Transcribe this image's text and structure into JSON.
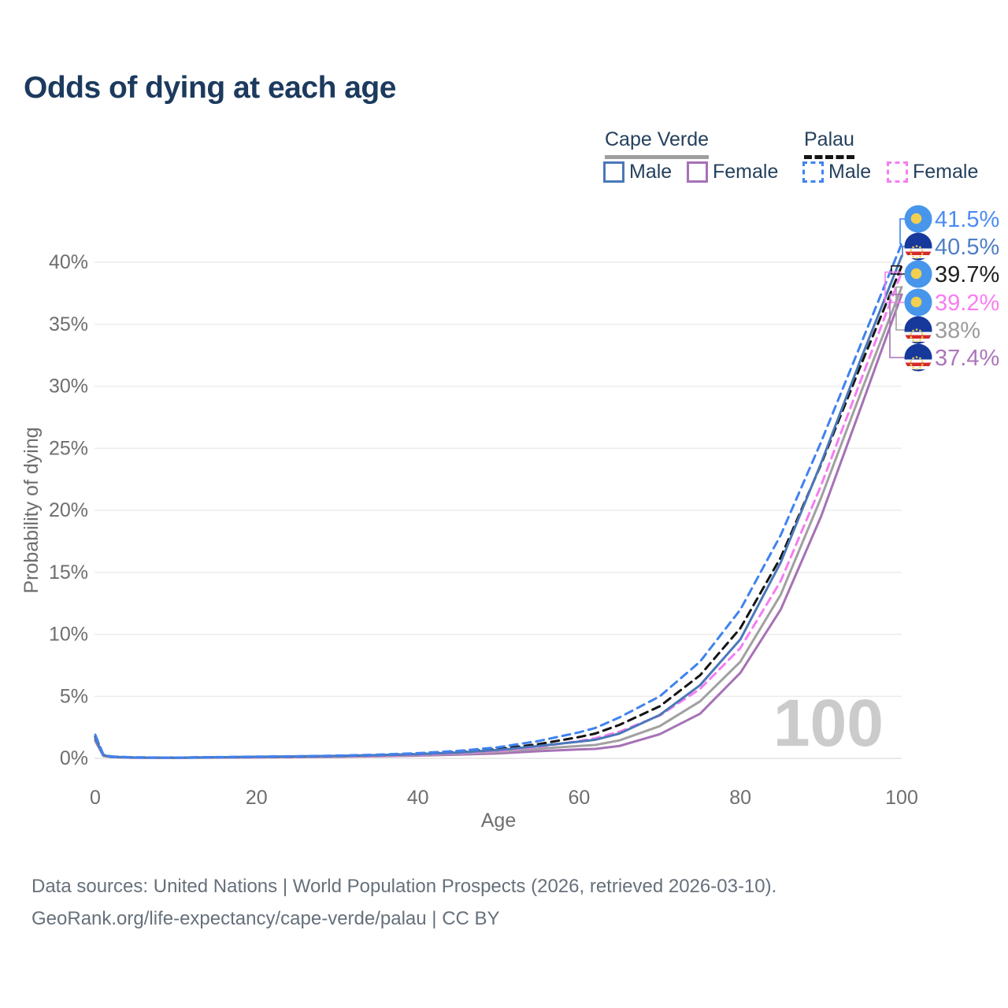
{
  "title": "Odds of dying at each age",
  "colors": {
    "title_text": "#1c3a5e",
    "legend_text": "#24405c",
    "axis_text": "#6e6e6e",
    "grid": "#ececec",
    "grid_zero": "#e2e2e2",
    "watermark": "#cbcbcb",
    "footer_text": "#66707b"
  },
  "legend": {
    "groups": [
      {
        "title": "Cape Verde",
        "underline_style": "solid",
        "underline_color": "#9e9e9e",
        "items": [
          {
            "label": "Male",
            "swatch_color": "#4a78b8",
            "swatch_style": "solid"
          },
          {
            "label": "Female",
            "swatch_color": "#a671b5",
            "swatch_style": "solid"
          }
        ]
      },
      {
        "title": "Palau",
        "underline_style": "dashed",
        "underline_color": "#141414",
        "items": [
          {
            "label": "Male",
            "swatch_color": "#3f82f0",
            "swatch_style": "dashed"
          },
          {
            "label": "Female",
            "swatch_color": "#f57df2",
            "swatch_style": "dashed"
          }
        ]
      }
    ]
  },
  "flags": {
    "palau": {
      "bg": "#4796ec",
      "disc": "#f2cf4e"
    },
    "cape_verde": {
      "bg": "#16399b",
      "stripe_white": "#ffffff",
      "stripe_red": "#d42a2a",
      "stars": "#f2cf4e"
    }
  },
  "chart_data": {
    "type": "line",
    "title": "Odds of dying at each age",
    "xlabel": "Age",
    "ylabel": "Probability of dying",
    "xlim": [
      0,
      100
    ],
    "ylim": [
      0,
      43
    ],
    "grid": "horizontal",
    "legend_position": "top-right",
    "hover_age_label": "100",
    "x_ticks": [
      {
        "value": 0,
        "label": "0"
      },
      {
        "value": 20,
        "label": "20"
      },
      {
        "value": 40,
        "label": "40"
      },
      {
        "value": 60,
        "label": "60"
      },
      {
        "value": 80,
        "label": "80"
      },
      {
        "value": 100,
        "label": "100"
      }
    ],
    "y_ticks": [
      {
        "value": 0,
        "label": "0%"
      },
      {
        "value": 5,
        "label": "5%"
      },
      {
        "value": 10,
        "label": "10%"
      },
      {
        "value": 15,
        "label": "15%"
      },
      {
        "value": 20,
        "label": "20%"
      },
      {
        "value": 25,
        "label": "25%"
      },
      {
        "value": 30,
        "label": "30%"
      },
      {
        "value": 35,
        "label": "35%"
      },
      {
        "value": 40,
        "label": "40%"
      }
    ],
    "ages": [
      0,
      1,
      2,
      5,
      10,
      15,
      20,
      25,
      30,
      35,
      40,
      45,
      50,
      55,
      60,
      62,
      65,
      70,
      75,
      80,
      85,
      90,
      95,
      100
    ],
    "series": [
      {
        "name": "Palau Male",
        "country": "Palau",
        "sex": "male",
        "color": "#3f82f0",
        "label_color": "#4b8bf5",
        "dash": "10 7",
        "flag": "palau",
        "end_value": 41.5,
        "end_label": "41.5%",
        "values": [
          1.9,
          0.3,
          0.15,
          0.08,
          0.06,
          0.1,
          0.14,
          0.17,
          0.22,
          0.3,
          0.42,
          0.6,
          0.9,
          1.4,
          2.1,
          2.45,
          3.3,
          5.0,
          7.8,
          12.0,
          18.0,
          25.5,
          33.5,
          41.5
        ]
      },
      {
        "name": "Cape Verde Male",
        "country": "Cape Verde",
        "sex": "male",
        "color": "#4a78b8",
        "label_color": "#507fc4",
        "dash": null,
        "flag": "cape_verde",
        "end_value": 40.5,
        "end_label": "40.5%",
        "values": [
          1.6,
          0.25,
          0.12,
          0.06,
          0.05,
          0.09,
          0.13,
          0.16,
          0.2,
          0.26,
          0.34,
          0.47,
          0.68,
          1.0,
          1.35,
          1.5,
          2.0,
          3.5,
          5.9,
          9.6,
          15.8,
          23.8,
          32.3,
          40.5
        ]
      },
      {
        "name": "Palau",
        "country": "Palau",
        "sex": "both",
        "color": "#141414",
        "label_color": "#1f1f1f",
        "dash": "10 7",
        "flag": "palau",
        "end_value": 39.7,
        "end_label": "39.7%",
        "values": [
          1.75,
          0.28,
          0.14,
          0.07,
          0.06,
          0.09,
          0.12,
          0.15,
          0.19,
          0.26,
          0.36,
          0.51,
          0.75,
          1.15,
          1.72,
          2.0,
          2.7,
          4.2,
          6.7,
          10.5,
          16.2,
          23.7,
          31.8,
          39.7
        ]
      },
      {
        "name": "Palau Female",
        "country": "Palau",
        "sex": "female",
        "color": "#f57df2",
        "label_color": "#f97df2",
        "dash": "10 7",
        "flag": "palau",
        "end_value": 39.2,
        "end_label": "39.2%",
        "values": [
          1.6,
          0.25,
          0.12,
          0.06,
          0.05,
          0.08,
          0.1,
          0.13,
          0.17,
          0.22,
          0.3,
          0.42,
          0.6,
          0.92,
          1.4,
          1.62,
          2.15,
          3.45,
          5.6,
          8.9,
          14.3,
          22.0,
          30.6,
          39.2
        ]
      },
      {
        "name": "Cape Verde",
        "country": "Cape Verde",
        "sex": "both",
        "color": "#a0a0a0",
        "label_color": "#9b9b9b",
        "dash": null,
        "flag": "cape_verde",
        "end_value": 38.0,
        "end_label": "38%",
        "values": [
          1.5,
          0.22,
          0.11,
          0.06,
          0.05,
          0.07,
          0.1,
          0.12,
          0.15,
          0.2,
          0.27,
          0.37,
          0.52,
          0.78,
          1.0,
          1.08,
          1.45,
          2.6,
          4.6,
          7.8,
          13.2,
          21.0,
          29.6,
          38.0
        ]
      },
      {
        "name": "Cape Verde Female",
        "country": "Cape Verde",
        "sex": "female",
        "color": "#a671b5",
        "label_color": "#ac75bb",
        "dash": null,
        "flag": "cape_verde",
        "end_value": 37.4,
        "end_label": "37.4%",
        "values": [
          1.4,
          0.2,
          0.1,
          0.05,
          0.04,
          0.06,
          0.08,
          0.1,
          0.13,
          0.17,
          0.22,
          0.3,
          0.4,
          0.58,
          0.72,
          0.76,
          1.0,
          1.95,
          3.6,
          6.9,
          12.0,
          19.5,
          28.4,
          37.4
        ]
      }
    ]
  },
  "footer": {
    "line1": "Data sources: United Nations | World Population Prospects (2026, retrieved 2026-03-10).",
    "line2": "GeoRank.org/life-expectancy/cape-verde/palau | CC BY"
  }
}
